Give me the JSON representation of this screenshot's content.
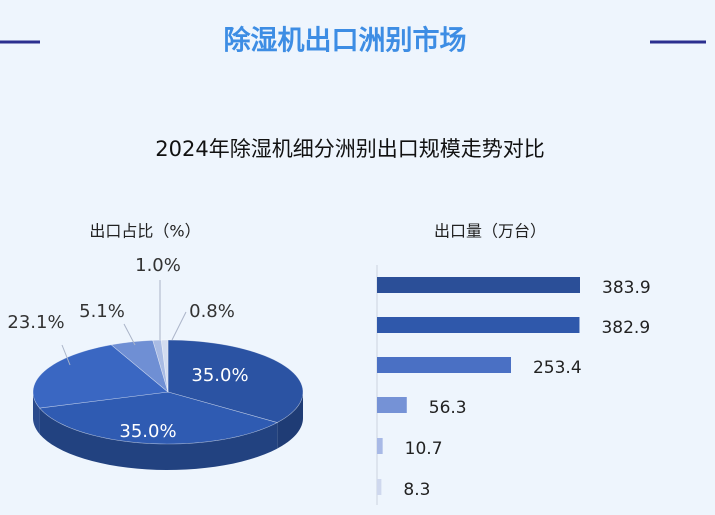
{
  "header": {
    "title": "除湿机出口洲别市场"
  },
  "subtitle": "2024年除湿机细分洲别出口规模走势对比",
  "chart_data": [
    {
      "type": "pie",
      "title": "出口占比（%）",
      "values": [
        35.0,
        35.0,
        23.1,
        5.1,
        1.0,
        0.8
      ],
      "value_labels": [
        "35.0%",
        "35.0%",
        "23.1%",
        "5.1%",
        "1.0%",
        "0.8%"
      ],
      "colors": [
        "#2b53a3",
        "#2f5bb2",
        "#3a67c2",
        "#6f8fd4",
        "#a9bbe4",
        "#d3dcf0"
      ]
    },
    {
      "type": "bar",
      "orientation": "horizontal",
      "title": "出口量（万台）",
      "values": [
        383.9,
        382.9,
        253.4,
        56.3,
        10.7,
        8.3
      ],
      "colors": [
        "#2b4f98",
        "#2f58ab",
        "#4a70c4",
        "#7592d6",
        "#a8b9e6",
        "#cfd8ee"
      ]
    }
  ]
}
